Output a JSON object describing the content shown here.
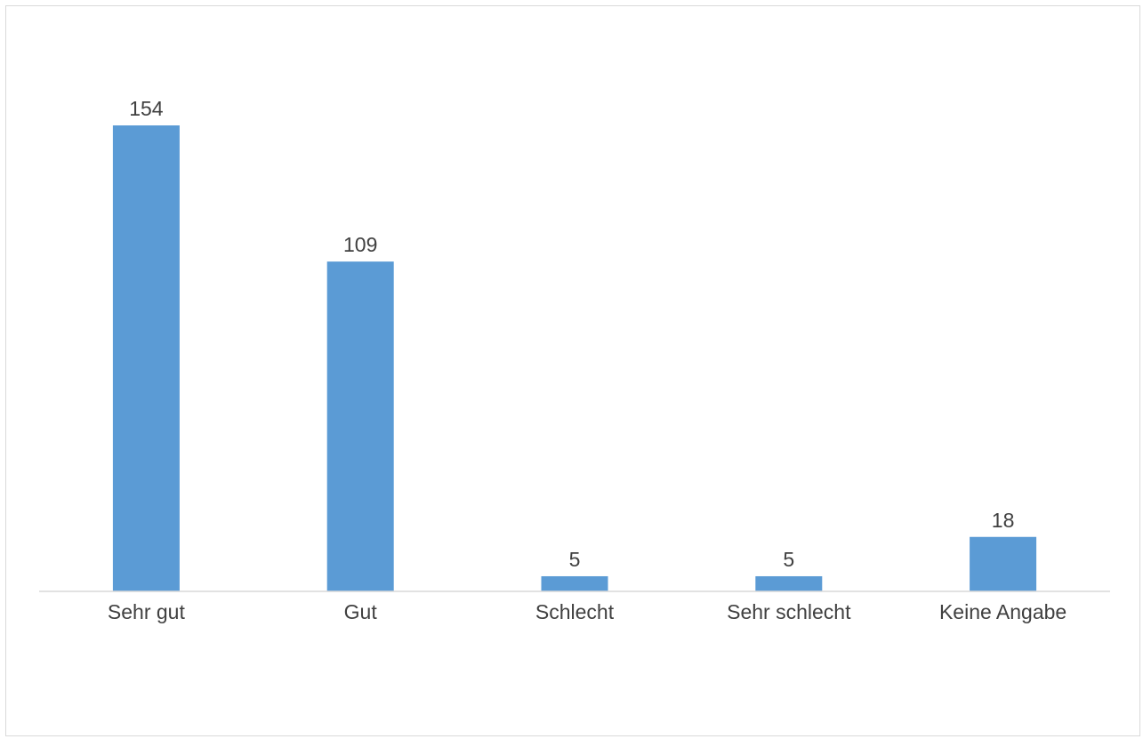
{
  "chart_data": {
    "type": "bar",
    "categories": [
      "Sehr gut",
      "Gut",
      "Schlecht",
      "Sehr schlecht",
      "Keine Angabe"
    ],
    "values": [
      154,
      109,
      5,
      5,
      18
    ],
    "data_labels": [
      "154",
      "109",
      "5",
      "5",
      "18"
    ],
    "title": "",
    "xlabel": "",
    "ylabel": "",
    "ylim": [
      0,
      154
    ],
    "grid": false,
    "legend": "none",
    "bar_color": "#5b9bd5",
    "text_color": "#404040",
    "axis_color": "#d9d9d9"
  }
}
